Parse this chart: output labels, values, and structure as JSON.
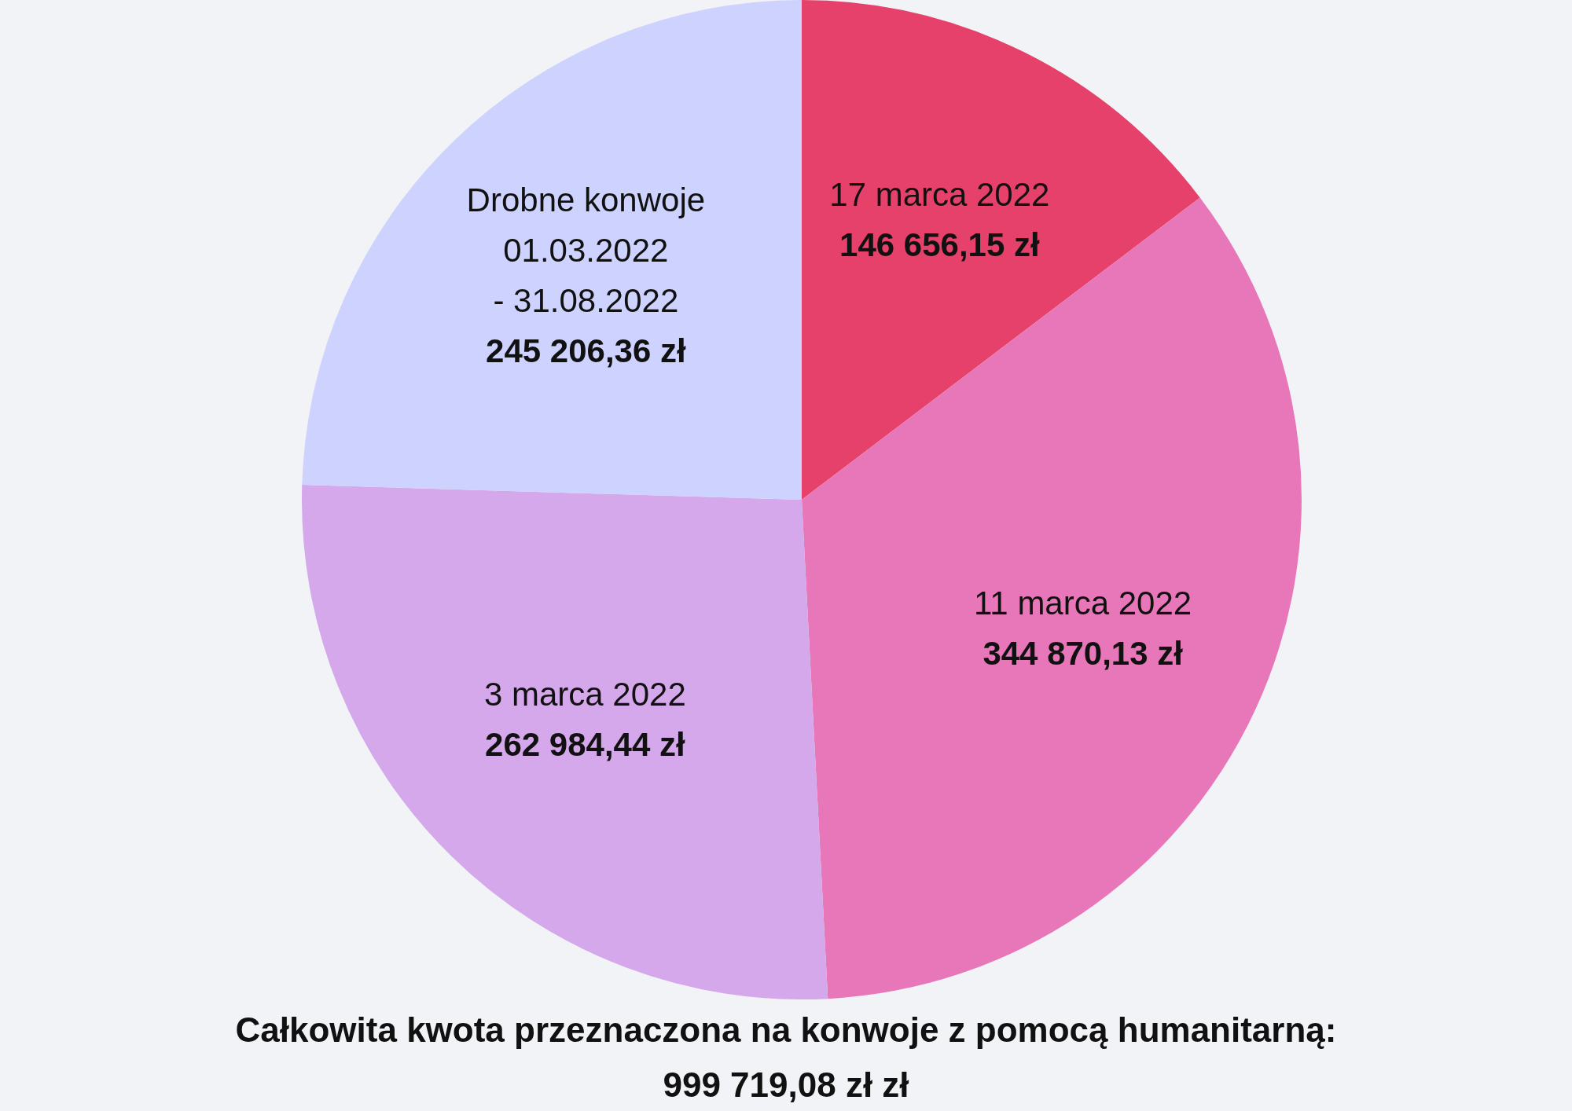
{
  "chart_data": {
    "type": "pie",
    "title": "Całkowita kwota przeznaczona na konwoje z pomocą humanitarną:",
    "annotations": [
      "999 719,08 zł zł"
    ],
    "categories": [
      "17 marca 2022",
      "11 marca 2022",
      "3 marca 2022",
      "Drobne konwoje\n01.03.2022\n- 31.08.2022"
    ],
    "values": [
      146656.15,
      344870.13,
      262984.44,
      245206.36
    ],
    "value_labels": [
      "146 656,15 zł",
      "344 870,13 zł",
      "262 984,44 zł",
      "245 206,36 zł"
    ],
    "colors": [
      "#e6416a",
      "#e777b8",
      "#d4a8ea",
      "#cdd2fe"
    ],
    "legend": false
  }
}
